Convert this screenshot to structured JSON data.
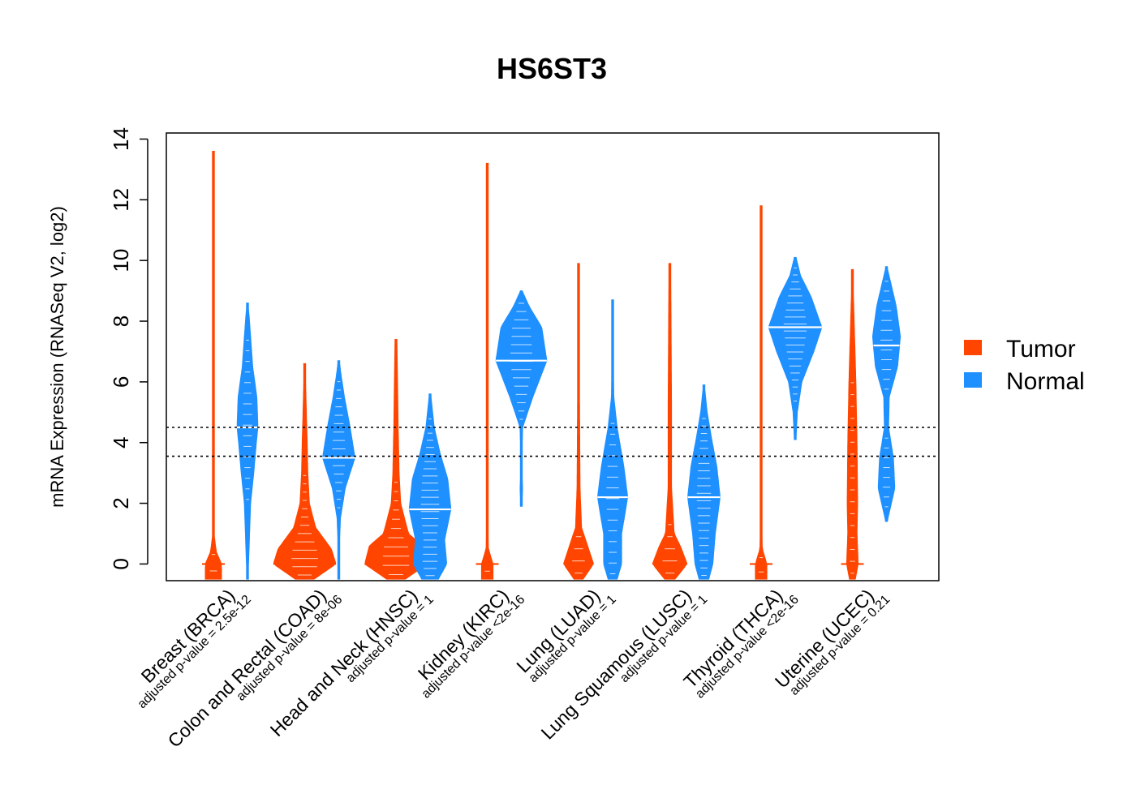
{
  "chart_data": {
    "type": "violin",
    "title": "HS6ST3",
    "ylabel": "mRNA Expression (RNASeq V2, log2)",
    "xlabel": "",
    "ylim": [
      -0.55,
      14.2
    ],
    "yticks": [
      0,
      2,
      4,
      6,
      8,
      10,
      12,
      14
    ],
    "reference_lines": [
      4.5,
      3.55
    ],
    "legend": {
      "position": "right",
      "entries": [
        {
          "name": "Tumor",
          "color": "#ff4500"
        },
        {
          "name": "Normal",
          "color": "#1e90ff"
        }
      ]
    },
    "groups": [
      {
        "label": "Breast (BRCA)",
        "pvalue": "adjusted p-value = 2.5e-12",
        "tumor": {
          "median": 0,
          "min": -0.5,
          "max": 13.6,
          "maxwidth": 0.07,
          "profile": [
            [
              0,
              1
            ],
            [
              0.4,
              0.35
            ],
            [
              1,
              0.08
            ],
            [
              3,
              0.06
            ],
            [
              5,
              0.05
            ],
            [
              7,
              0.03
            ],
            [
              10,
              0.05
            ],
            [
              11.5,
              0.04
            ],
            [
              13.6,
              0.02
            ]
          ]
        },
        "normal": {
          "median": 4.5,
          "min": -0.5,
          "max": 8.6,
          "maxwidth": 0.09,
          "profile": [
            [
              -0.5,
              0.05
            ],
            [
              0,
              0.1
            ],
            [
              1,
              0.2
            ],
            [
              2,
              0.3
            ],
            [
              3,
              0.6
            ],
            [
              4,
              0.85
            ],
            [
              4.5,
              1
            ],
            [
              5.5,
              0.9
            ],
            [
              6.5,
              0.5
            ],
            [
              7.5,
              0.3
            ],
            [
              8.2,
              0.15
            ],
            [
              8.6,
              0.03
            ]
          ]
        }
      },
      {
        "label": "Colon and Rectal (COAD)",
        "pvalue": "adjusted p-value = 8e-06",
        "tumor": {
          "median": 0,
          "min": -0.5,
          "max": 6.6,
          "maxwidth": 0.27,
          "profile": [
            [
              -0.5,
              0.3
            ],
            [
              0,
              1
            ],
            [
              0.5,
              0.85
            ],
            [
              1.2,
              0.35
            ],
            [
              2,
              0.15
            ],
            [
              3,
              0.1
            ],
            [
              4,
              0.08
            ],
            [
              5.5,
              0.04
            ],
            [
              6.6,
              0.02
            ]
          ]
        },
        "normal": {
          "median": 3.5,
          "min": -0.5,
          "max": 6.7,
          "maxwidth": 0.14,
          "profile": [
            [
              -0.5,
              0.02
            ],
            [
              0.5,
              0.04
            ],
            [
              1.5,
              0.1
            ],
            [
              2.5,
              0.4
            ],
            [
              3.5,
              1
            ],
            [
              4.5,
              0.7
            ],
            [
              5.5,
              0.35
            ],
            [
              6.2,
              0.15
            ],
            [
              6.7,
              0.03
            ]
          ]
        }
      },
      {
        "label": "Head and Neck (HNSC)",
        "pvalue": "adjusted p-value = 1",
        "tumor": {
          "median": 0,
          "min": -0.5,
          "max": 7.4,
          "maxwidth": 0.27,
          "profile": [
            [
              -0.5,
              0.3
            ],
            [
              0,
              1
            ],
            [
              0.6,
              0.85
            ],
            [
              1,
              0.4
            ],
            [
              2,
              0.15
            ],
            [
              3,
              0.1
            ],
            [
              4.5,
              0.07
            ],
            [
              6,
              0.05
            ],
            [
              7.4,
              0.03
            ]
          ]
        },
        "normal": {
          "median": 1.8,
          "min": -0.5,
          "max": 5.6,
          "maxwidth": 0.18,
          "profile": [
            [
              -0.5,
              0.4
            ],
            [
              0,
              0.8
            ],
            [
              0.8,
              0.7
            ],
            [
              1.8,
              1
            ],
            [
              2.8,
              0.85
            ],
            [
              3.6,
              0.5
            ],
            [
              4.5,
              0.2
            ],
            [
              5.6,
              0.03
            ]
          ]
        }
      },
      {
        "label": "Kidney (KIRC)",
        "pvalue": "adjusted p-value <2e-16",
        "tumor": {
          "median": 0,
          "min": -0.5,
          "max": 13.2,
          "maxwidth": 0.05,
          "profile": [
            [
              0,
              1
            ],
            [
              0.5,
              0.2
            ],
            [
              2,
              0.06
            ],
            [
              4,
              0.08
            ],
            [
              6,
              0.1
            ],
            [
              8,
              0.06
            ],
            [
              10,
              0.04
            ],
            [
              13.2,
              0.02
            ]
          ]
        },
        "normal": {
          "median": 6.7,
          "min": 1.9,
          "max": 9.0,
          "maxwidth": 0.22,
          "profile": [
            [
              1.9,
              0.03
            ],
            [
              2.5,
              0.05
            ],
            [
              3.2,
              0.02
            ],
            [
              4.5,
              0.05
            ],
            [
              5.5,
              0.45
            ],
            [
              6.7,
              1
            ],
            [
              7.8,
              0.8
            ],
            [
              8.5,
              0.3
            ],
            [
              9,
              0.03
            ]
          ]
        }
      },
      {
        "label": "Lung (LUAD)",
        "pvalue": "adjusted p-value = 1",
        "tumor": {
          "median": 0,
          "min": -0.5,
          "max": 9.9,
          "maxwidth": 0.13,
          "profile": [
            [
              -0.5,
              0.3
            ],
            [
              0,
              1
            ],
            [
              0.6,
              0.6
            ],
            [
              1.2,
              0.2
            ],
            [
              2.5,
              0.1
            ],
            [
              4,
              0.08
            ],
            [
              6,
              0.06
            ],
            [
              8,
              0.04
            ],
            [
              9.9,
              0.02
            ]
          ]
        },
        "normal": {
          "median": 2.2,
          "min": -0.5,
          "max": 8.7,
          "maxwidth": 0.13,
          "profile": [
            [
              -0.5,
              0.3
            ],
            [
              0,
              0.6
            ],
            [
              1,
              0.6
            ],
            [
              2.2,
              1
            ],
            [
              3.2,
              0.75
            ],
            [
              4.5,
              0.3
            ],
            [
              5.5,
              0.08
            ],
            [
              7,
              0.04
            ],
            [
              8.7,
              0.02
            ]
          ]
        }
      },
      {
        "label": "Lung Squamous (LUSC)",
        "pvalue": "adjusted p-value = 1",
        "tumor": {
          "median": 0,
          "min": -0.5,
          "max": 9.9,
          "maxwidth": 0.15,
          "profile": [
            [
              -0.5,
              0.3
            ],
            [
              0,
              1
            ],
            [
              0.6,
              0.6
            ],
            [
              1,
              0.25
            ],
            [
              2.5,
              0.1
            ],
            [
              5,
              0.1
            ],
            [
              7,
              0.08
            ],
            [
              9,
              0.06
            ],
            [
              9.9,
              0.02
            ]
          ]
        },
        "normal": {
          "median": 2.2,
          "min": -0.5,
          "max": 5.9,
          "maxwidth": 0.14,
          "profile": [
            [
              -0.5,
              0.3
            ],
            [
              0,
              0.55
            ],
            [
              1,
              0.7
            ],
            [
              2.2,
              1
            ],
            [
              3.2,
              0.8
            ],
            [
              4.2,
              0.45
            ],
            [
              5,
              0.2
            ],
            [
              5.9,
              0.03
            ]
          ]
        }
      },
      {
        "label": "Thyroid (THCA)",
        "pvalue": "adjusted p-value <2e-16",
        "tumor": {
          "median": 0,
          "min": -0.5,
          "max": 11.8,
          "maxwidth": 0.05,
          "profile": [
            [
              0,
              1
            ],
            [
              0.5,
              0.2
            ],
            [
              2,
              0.1
            ],
            [
              4,
              0.06
            ],
            [
              6,
              0.1
            ],
            [
              8,
              0.1
            ],
            [
              10,
              0.05
            ],
            [
              11.8,
              0.02
            ]
          ]
        },
        "normal": {
          "median": 7.8,
          "min": 4.1,
          "max": 10.1,
          "maxwidth": 0.23,
          "profile": [
            [
              4.1,
              0.03
            ],
            [
              5,
              0.08
            ],
            [
              6,
              0.25
            ],
            [
              7,
              0.7
            ],
            [
              7.8,
              1
            ],
            [
              8.8,
              0.6
            ],
            [
              9.5,
              0.2
            ],
            [
              10.1,
              0.03
            ]
          ]
        }
      },
      {
        "label": "Uterine (UCEC)",
        "pvalue": "adjusted p-value = 0.21",
        "tumor": {
          "median": 0,
          "min": -0.5,
          "max": 9.7,
          "maxwidth": 0.05,
          "profile": [
            [
              -0.5,
              0.5
            ],
            [
              0,
              1
            ],
            [
              1,
              0.8
            ],
            [
              2,
              0.9
            ],
            [
              4,
              0.8
            ],
            [
              6,
              0.6
            ],
            [
              8,
              0.3
            ],
            [
              9.7,
              0.05
            ]
          ]
        },
        "normal": {
          "median": 7.2,
          "min": 1.4,
          "max": 9.8,
          "maxwidth": 0.12,
          "profile": [
            [
              1.4,
              0.05
            ],
            [
              2.5,
              0.6
            ],
            [
              3.5,
              0.5
            ],
            [
              4.5,
              0.15
            ],
            [
              5.5,
              0.2
            ],
            [
              6.5,
              0.8
            ],
            [
              7.5,
              1
            ],
            [
              8.5,
              0.7
            ],
            [
              9.8,
              0.03
            ]
          ]
        }
      }
    ]
  }
}
